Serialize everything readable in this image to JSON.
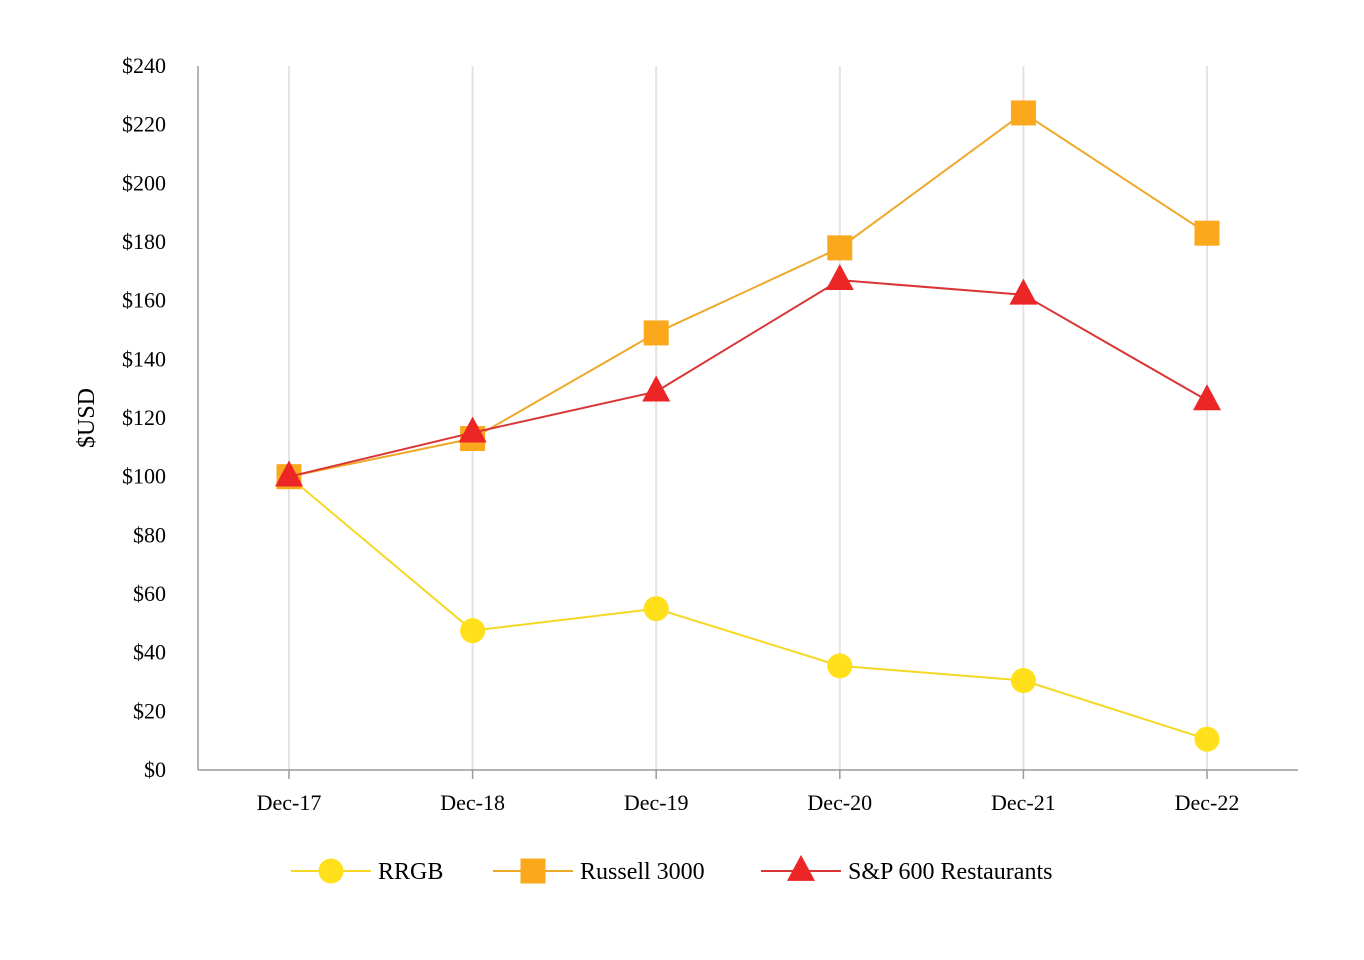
{
  "chart_data": {
    "type": "line",
    "title": "",
    "xlabel": "",
    "ylabel": "$USD",
    "categories": [
      "Dec-17",
      "Dec-18",
      "Dec-19",
      "Dec-20",
      "Dec-21",
      "Dec-22"
    ],
    "ylim": [
      0,
      240
    ],
    "yticks": [
      0,
      20,
      40,
      60,
      80,
      100,
      120,
      140,
      160,
      180,
      200,
      220,
      240
    ],
    "ytick_labels": [
      "$0",
      "$20",
      "$40",
      "$60",
      "$80",
      "$100",
      "$120",
      "$140",
      "$160",
      "$180",
      "$200",
      "$220",
      "$240"
    ],
    "grid": "vertical",
    "legend_position": "bottom",
    "series": [
      {
        "name": "RRGB",
        "values": [
          100,
          47.5,
          55,
          35.5,
          30.5,
          10.5
        ],
        "color": "#FFE01A",
        "line_color": "#F5D824",
        "marker": "circle"
      },
      {
        "name": "Russell 3000",
        "values": [
          100,
          113,
          149,
          178,
          224,
          183
        ],
        "color": "#FBA81C",
        "line_color": "#EFA92A",
        "marker": "square"
      },
      {
        "name": "S&P 600 Restaurants",
        "values": [
          100,
          115,
          129,
          167,
          162,
          126
        ],
        "color": "#EC2526",
        "line_color": "#D93535",
        "marker": "triangle"
      }
    ]
  }
}
